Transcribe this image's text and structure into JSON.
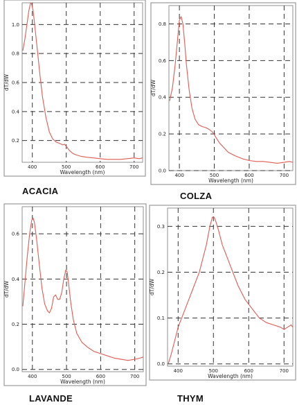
{
  "chart_data": [
    {
      "type": "line",
      "title": "ACACIA",
      "xlabel": "Wavelength (nm)",
      "ylabel": "dT/dW",
      "xlim": [
        370,
        725
      ],
      "ylim": [
        0.05,
        1.15
      ],
      "xticks": [
        400,
        500,
        600,
        700
      ],
      "yticks": [
        0.2,
        0.4,
        0.6,
        0.8,
        1.0
      ],
      "ytick_labels": [
        "0.2",
        "0.4",
        "0.6",
        "0.8",
        "1.0"
      ],
      "grid": true,
      "series": [
        {
          "color": "#e05a50",
          "x": [
            372,
            378,
            384,
            390,
            395,
            398,
            402,
            406,
            410,
            416,
            422,
            430,
            440,
            450,
            460,
            470,
            480,
            490,
            495,
            500,
            510,
            520,
            530,
            545,
            560,
            580,
            600,
            620,
            640,
            660,
            680,
            700,
            715,
            725
          ],
          "y": [
            0.82,
            0.9,
            1.0,
            1.1,
            1.15,
            1.14,
            1.1,
            1.02,
            0.93,
            0.8,
            0.66,
            0.5,
            0.36,
            0.26,
            0.21,
            0.19,
            0.18,
            0.17,
            0.175,
            0.16,
            0.13,
            0.11,
            0.1,
            0.09,
            0.085,
            0.08,
            0.075,
            0.07,
            0.07,
            0.07,
            0.075,
            0.08,
            0.075,
            0.08
          ]
        }
      ]
    },
    {
      "type": "line",
      "title": "COLZA",
      "xlabel": "Wavelength (nm)",
      "ylabel": "dT/dW",
      "xlim": [
        370,
        725
      ],
      "ylim": [
        0,
        0.9
      ],
      "xticks": [
        400,
        500,
        600,
        700
      ],
      "yticks": [
        0.0,
        0.2,
        0.4,
        0.6,
        0.8
      ],
      "ytick_labels": [
        "0.0",
        "0.2",
        "0.4",
        "0.6",
        "0.8"
      ],
      "grid": true,
      "series": [
        {
          "color": "#e05a50",
          "x": [
            372,
            380,
            388,
            395,
            400,
            405,
            410,
            415,
            420,
            428,
            436,
            445,
            455,
            465,
            475,
            485,
            495,
            505,
            515,
            525,
            540,
            560,
            580,
            600,
            620,
            640,
            660,
            680,
            700,
            715,
            725
          ],
          "y": [
            0.38,
            0.45,
            0.58,
            0.72,
            0.82,
            0.84,
            0.8,
            0.7,
            0.58,
            0.44,
            0.34,
            0.28,
            0.25,
            0.24,
            0.235,
            0.225,
            0.21,
            0.18,
            0.15,
            0.13,
            0.1,
            0.08,
            0.065,
            0.055,
            0.05,
            0.05,
            0.045,
            0.04,
            0.045,
            0.05,
            0.045
          ]
        }
      ]
    },
    {
      "type": "line",
      "title": "LAVANDE",
      "xlabel": "Wavelength (nm)",
      "ylabel": "dT/dW",
      "xlim": [
        370,
        725
      ],
      "ylim": [
        -0.01,
        0.72
      ],
      "xticks": [
        400,
        500,
        600,
        700
      ],
      "yticks": [
        0.0,
        0.2,
        0.4,
        0.6
      ],
      "ytick_labels": [
        "0.0",
        "0.2",
        "0.4",
        "0.6"
      ],
      "grid": true,
      "series": [
        {
          "color": "#e05a50",
          "x": [
            372,
            378,
            385,
            392,
            398,
            402,
            406,
            412,
            420,
            428,
            436,
            444,
            450,
            456,
            462,
            468,
            474,
            480,
            486,
            492,
            498,
            502,
            507,
            512,
            520,
            530,
            545,
            560,
            580,
            600,
            620,
            640,
            660,
            680,
            700,
            715,
            725
          ],
          "y": [
            0.28,
            0.38,
            0.5,
            0.6,
            0.66,
            0.67,
            0.65,
            0.58,
            0.47,
            0.36,
            0.29,
            0.26,
            0.25,
            0.27,
            0.32,
            0.33,
            0.31,
            0.31,
            0.34,
            0.4,
            0.44,
            0.43,
            0.37,
            0.3,
            0.22,
            0.16,
            0.12,
            0.1,
            0.08,
            0.07,
            0.06,
            0.05,
            0.045,
            0.04,
            0.045,
            0.05,
            0.055
          ]
        }
      ]
    },
    {
      "type": "line",
      "title": "THYM",
      "xlabel": "Wavelength (nm)",
      "ylabel": "dT/dW",
      "xlim": [
        370,
        725
      ],
      "ylim": [
        -0.005,
        0.34
      ],
      "xticks": [
        400,
        500,
        600,
        700
      ],
      "yticks": [
        0.0,
        0.1,
        0.2,
        0.3
      ],
      "ytick_labels": [
        "0.0",
        "0.1",
        "0.2",
        "0.3"
      ],
      "grid": true,
      "series": [
        {
          "color": "#e05a50",
          "x": [
            372,
            380,
            390,
            400,
            410,
            420,
            430,
            440,
            450,
            460,
            470,
            480,
            490,
            497,
            502,
            507,
            515,
            525,
            540,
            555,
            570,
            590,
            610,
            630,
            650,
            670,
            690,
            700,
            710,
            720,
            725
          ],
          "y": [
            0.0,
            0.02,
            0.05,
            0.08,
            0.1,
            0.12,
            0.14,
            0.16,
            0.18,
            0.2,
            0.23,
            0.26,
            0.3,
            0.32,
            0.32,
            0.31,
            0.29,
            0.26,
            0.23,
            0.2,
            0.17,
            0.14,
            0.12,
            0.1,
            0.09,
            0.085,
            0.08,
            0.075,
            0.08,
            0.085,
            0.08
          ]
        }
      ]
    }
  ]
}
